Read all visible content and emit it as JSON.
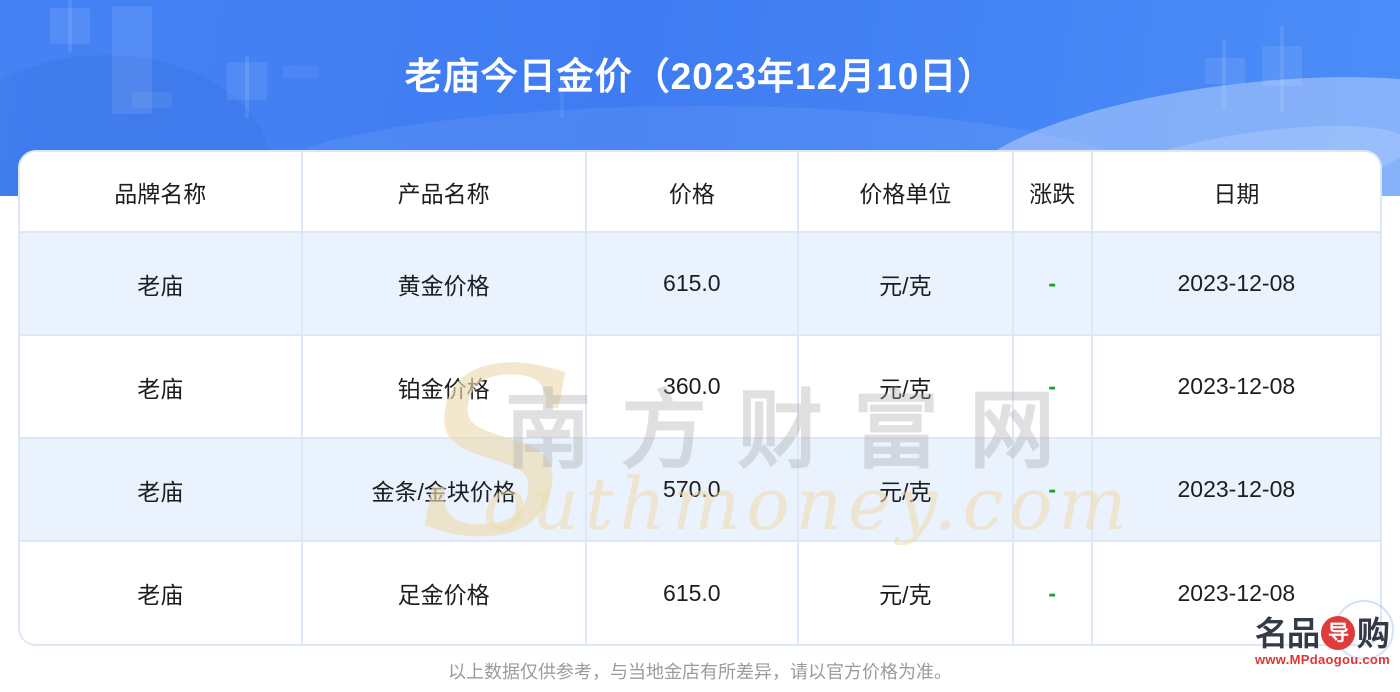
{
  "header": {
    "title": "老庙今日金价（2023年12月10日）"
  },
  "table": {
    "columns": [
      "品牌名称",
      "产品名称",
      "价格",
      "价格单位",
      "涨跌",
      "日期"
    ],
    "rows": [
      {
        "brand": "老庙",
        "product": "黄金价格",
        "price": "615.0",
        "unit": "元/克",
        "change": "-",
        "date": "2023-12-08"
      },
      {
        "brand": "老庙",
        "product": "铂金价格",
        "price": "360.0",
        "unit": "元/克",
        "change": "-",
        "date": "2023-12-08"
      },
      {
        "brand": "老庙",
        "product": "金条/金块价格",
        "price": "570.0",
        "unit": "元/克",
        "change": "-",
        "date": "2023-12-08"
      },
      {
        "brand": "老庙",
        "product": "足金价格",
        "price": "615.0",
        "unit": "元/克",
        "change": "-",
        "date": "2023-12-08"
      }
    ]
  },
  "watermark": {
    "initial": "S",
    "cn": "南方财富网",
    "en": "outhmoney.com"
  },
  "footer": {
    "disclaimer": "以上数据仅供参考，与当地金店有所差异，请以官方价格为准。"
  },
  "logo": {
    "text_left": "名品",
    "badge": "导",
    "text_right": "购",
    "url": "www.MPdaogou.com"
  },
  "colors": {
    "banner_blue": "#4583f5",
    "row_alt_blue": "#e9f2fd",
    "cell_border": "#dce8f8",
    "change_green": "#1f9e2c",
    "logo_red": "#e23434",
    "disclaimer_gray": "#9b9b9b"
  }
}
